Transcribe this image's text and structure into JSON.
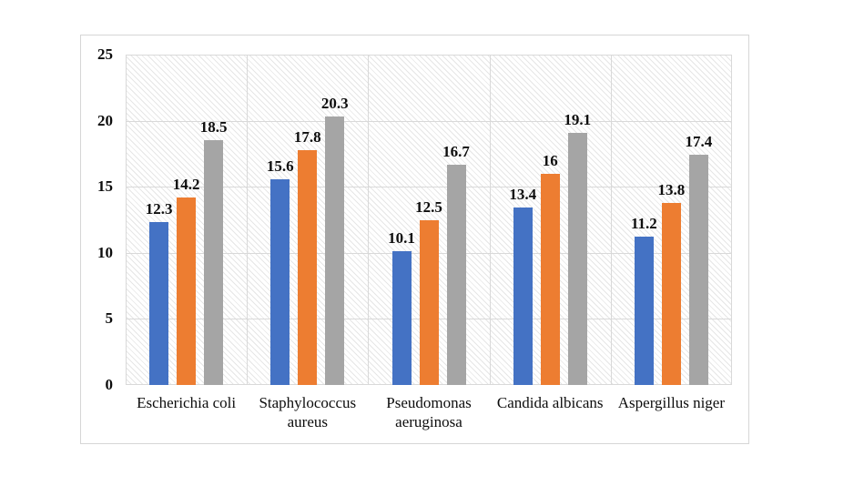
{
  "colors": {
    "series_blue": "#4472C4",
    "series_orange": "#ED7D31",
    "series_gray": "#A5A5A5",
    "gridline": "#d9d9d9",
    "chart_border": "#d6d6d6",
    "label_text": "#0d0d0d",
    "plot_hatch": "#e6e6e6"
  },
  "chart_data": {
    "type": "bar",
    "title": "",
    "legend": "none",
    "grid": {
      "horizontal": true,
      "vertical": true
    },
    "plot_background": "light-downward-diagonal-hatch",
    "categories": [
      "Escherichia coli",
      "Staphylococcus aureus",
      "Pseudomonas aeruginosa",
      "Candida albicans",
      "Aspergillus niger"
    ],
    "series": [
      {
        "name": "blue-series",
        "color": "#4472C4",
        "values": [
          12.3,
          15.6,
          10.1,
          13.4,
          11.2
        ],
        "labels": [
          "12.3",
          "15.6",
          "10.1",
          "13.4",
          "11.2"
        ]
      },
      {
        "name": "orange-series",
        "color": "#ED7D31",
        "values": [
          14.2,
          17.8,
          12.5,
          16,
          13.8
        ],
        "labels": [
          "14.2",
          "17.8",
          "12.5",
          "16",
          "13.8"
        ]
      },
      {
        "name": "gray-series",
        "color": "#A5A5A5",
        "values": [
          18.5,
          20.3,
          16.7,
          19.1,
          17.4
        ],
        "labels": [
          "18.5",
          "20.3",
          "16.7",
          "19.1",
          "17.4"
        ]
      }
    ],
    "y_axis": {
      "min": 0,
      "max": 25,
      "tick_step": 5,
      "ticks": [
        0,
        5,
        10,
        15,
        20,
        25
      ],
      "tick_labels": [
        "0",
        "5",
        "10",
        "15",
        "20",
        "25"
      ]
    },
    "xlabel": "",
    "ylabel": ""
  }
}
